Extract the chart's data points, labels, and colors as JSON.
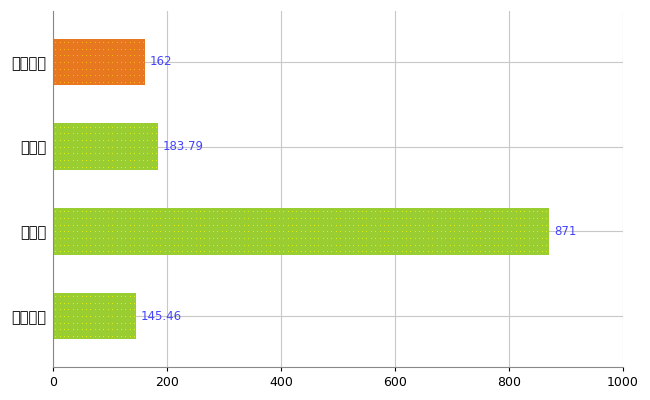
{
  "categories": [
    "毛呂山町",
    "県平均",
    "県最大",
    "全国平均"
  ],
  "values": [
    162,
    183.79,
    871,
    145.46
  ],
  "bar_colors": [
    "#E87820",
    "#9ACD32",
    "#9ACD32",
    "#9ACD32"
  ],
  "dot_colors": [
    "#FFD700",
    "#FFFF00",
    "#FFFF00",
    "#FFFF00"
  ],
  "value_labels": [
    "162",
    "183.79",
    "871",
    "145.46"
  ],
  "xlim": [
    0,
    1000
  ],
  "xticks": [
    0,
    200,
    400,
    600,
    800,
    1000
  ],
  "background_color": "#FFFFFF",
  "grid_color": "#C8C8C8",
  "label_color": "#4444FF",
  "bar_height": 0.55,
  "figsize": [
    6.5,
    4.0
  ],
  "dpi": 100
}
